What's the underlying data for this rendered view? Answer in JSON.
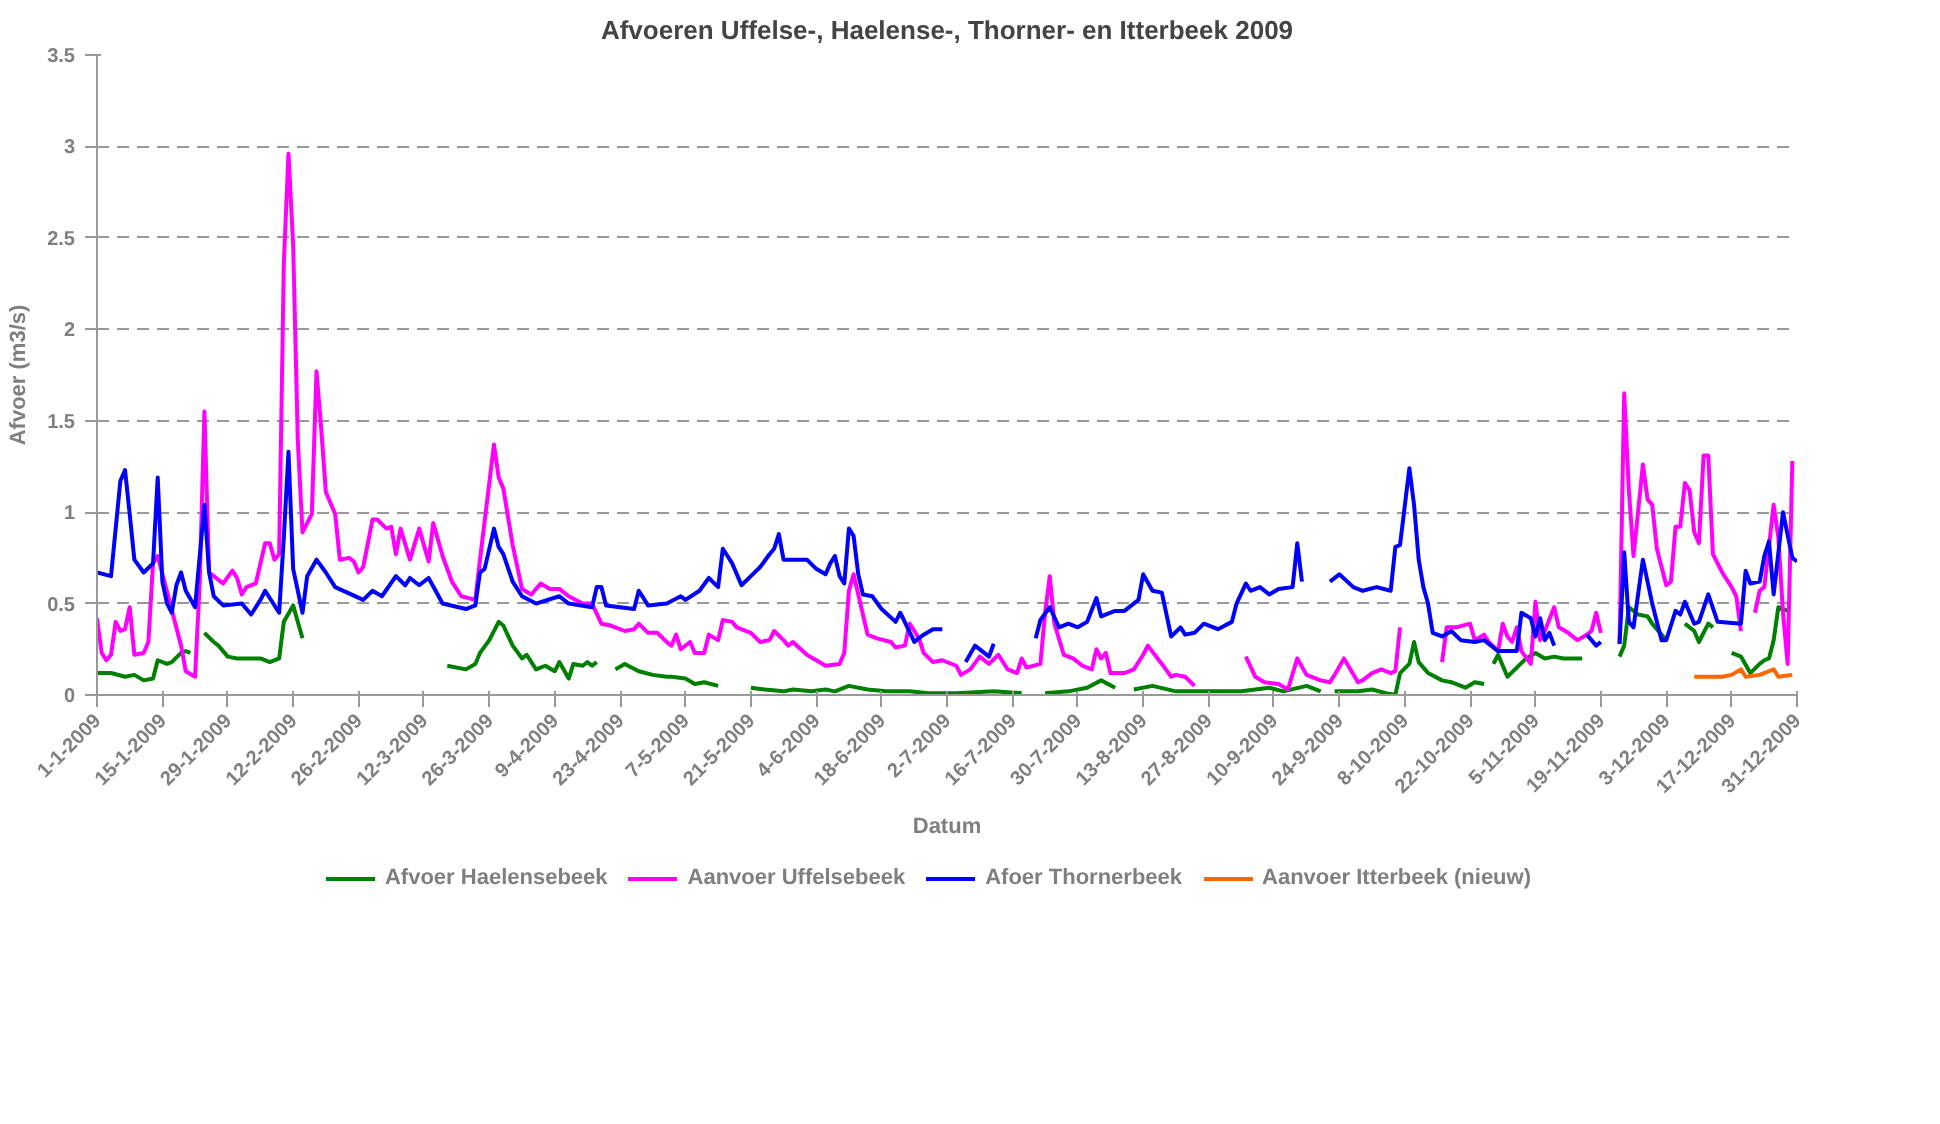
{
  "chart_data": {
    "type": "line",
    "title": "Afvoeren Uffelse-, Haelense-, Thorner- en Itterbeek 2009",
    "xlabel": "Datum",
    "ylabel": "Afvoer (m3/s)",
    "grid": "y",
    "legend": "bottom",
    "line_style": "solid",
    "xlim": [
      "2009-01-01",
      "2009-12-31"
    ],
    "ylim": [
      0,
      3.5
    ],
    "yticks": [
      0,
      0.5,
      1,
      1.5,
      2,
      2.5,
      3,
      3.5
    ],
    "xticks": [
      {
        "value": "2009-01-01",
        "label": "1-1-2009"
      },
      {
        "value": "2009-01-15",
        "label": "15-1-2009"
      },
      {
        "value": "2009-01-29",
        "label": "29-1-2009"
      },
      {
        "value": "2009-02-12",
        "label": "12-2-2009"
      },
      {
        "value": "2009-02-26",
        "label": "26-2-2009"
      },
      {
        "value": "2009-03-12",
        "label": "12-3-2009"
      },
      {
        "value": "2009-03-26",
        "label": "26-3-2009"
      },
      {
        "value": "2009-04-09",
        "label": "9-4-2009"
      },
      {
        "value": "2009-04-23",
        "label": "23-4-2009"
      },
      {
        "value": "2009-05-07",
        "label": "7-5-2009"
      },
      {
        "value": "2009-05-21",
        "label": "21-5-2009"
      },
      {
        "value": "2009-06-04",
        "label": "4-6-2009"
      },
      {
        "value": "2009-06-18",
        "label": "18-6-2009"
      },
      {
        "value": "2009-07-02",
        "label": "2-7-2009"
      },
      {
        "value": "2009-07-16",
        "label": "16-7-2009"
      },
      {
        "value": "2009-07-30",
        "label": "30-7-2009"
      },
      {
        "value": "2009-08-13",
        "label": "13-8-2009"
      },
      {
        "value": "2009-08-27",
        "label": "27-8-2009"
      },
      {
        "value": "2009-09-10",
        "label": "10-9-2009"
      },
      {
        "value": "2009-09-24",
        "label": "24-9-2009"
      },
      {
        "value": "2009-10-08",
        "label": "8-10-2009"
      },
      {
        "value": "2009-10-22",
        "label": "22-10-2009"
      },
      {
        "value": "2009-11-05",
        "label": "5-11-2009"
      },
      {
        "value": "2009-11-19",
        "label": "19-11-2009"
      },
      {
        "value": "2009-12-03",
        "label": "3-12-2009"
      },
      {
        "value": "2009-12-17",
        "label": "17-12-2009"
      },
      {
        "value": "2009-12-31",
        "label": "31-12-2009"
      }
    ],
    "series": [
      {
        "name": "Afvoer Haelensebeek",
        "color": "#008000",
        "x": [
          "2009-01-01",
          "2009-01-04",
          "2009-01-07",
          "2009-01-09",
          "2009-01-11",
          "2009-01-13",
          "2009-01-14",
          "2009-01-16",
          "2009-01-17",
          "2009-01-19",
          "2009-01-20",
          "2009-01-21",
          "2009-01-22",
          "2009-01-24",
          "2009-01-26",
          "2009-01-27",
          "2009-01-29",
          "2009-01-31",
          "2009-02-02",
          "2009-02-05",
          "2009-02-07",
          "2009-02-09",
          "2009-02-10",
          "2009-02-12",
          "2009-02-13",
          "2009-02-14",
          "2009-02-16",
          "2009-03-17",
          "2009-03-21",
          "2009-03-23",
          "2009-03-24",
          "2009-03-26",
          "2009-03-28",
          "2009-03-29",
          "2009-03-31",
          "2009-04-02",
          "2009-04-03",
          "2009-04-05",
          "2009-04-07",
          "2009-04-09",
          "2009-04-10",
          "2009-04-12",
          "2009-04-13",
          "2009-04-15",
          "2009-04-16",
          "2009-04-17",
          "2009-04-18",
          "2009-04-20",
          "2009-04-22",
          "2009-04-24",
          "2009-04-27",
          "2009-04-30",
          "2009-05-03",
          "2009-05-04",
          "2009-05-07",
          "2009-05-09",
          "2009-05-11",
          "2009-05-14",
          "2009-05-16",
          "2009-05-21",
          "2009-05-24",
          "2009-05-28",
          "2009-05-30",
          "2009-06-03",
          "2009-06-06",
          "2009-06-08",
          "2009-06-11",
          "2009-06-15",
          "2009-06-19",
          "2009-06-24",
          "2009-06-28",
          "2009-07-04",
          "2009-07-12",
          "2009-07-18",
          "2009-07-20",
          "2009-07-23",
          "2009-07-28",
          "2009-08-01",
          "2009-08-04",
          "2009-08-07",
          "2009-08-09",
          "2009-08-11",
          "2009-08-15",
          "2009-08-20",
          "2009-08-24",
          "2009-08-28",
          "2009-09-03",
          "2009-09-09",
          "2009-09-12",
          "2009-09-17",
          "2009-09-20",
          "2009-09-21",
          "2009-09-23",
          "2009-09-28",
          "2009-10-01",
          "2009-10-04",
          "2009-10-06",
          "2009-10-07",
          "2009-10-09",
          "2009-10-10",
          "2009-10-11",
          "2009-10-13",
          "2009-10-16",
          "2009-10-18",
          "2009-10-21",
          "2009-10-23",
          "2009-10-25",
          "2009-10-26",
          "2009-10-27",
          "2009-10-28",
          "2009-10-30",
          "2009-11-01",
          "2009-11-03",
          "2009-11-05",
          "2009-11-07",
          "2009-11-09",
          "2009-11-11",
          "2009-11-15",
          "2009-11-20",
          "2009-11-23",
          "2009-11-24",
          "2009-11-25",
          "2009-11-27",
          "2009-11-29",
          "2009-11-30",
          "2009-12-03",
          "2009-12-05",
          "2009-12-07",
          "2009-12-09",
          "2009-12-10",
          "2009-12-12",
          "2009-12-13",
          "2009-12-15",
          "2009-12-17",
          "2009-12-19",
          "2009-12-21",
          "2009-12-23",
          "2009-12-24",
          "2009-12-25",
          "2009-12-26",
          "2009-12-27",
          "2009-12-29"
        ],
        "values": [
          0.12,
          0.12,
          0.1,
          0.11,
          0.08,
          0.09,
          0.19,
          0.17,
          0.18,
          0.23,
          0.24,
          0.23,
          null,
          0.34,
          0.29,
          0.27,
          0.21,
          0.2,
          0.2,
          0.2,
          0.18,
          0.2,
          0.4,
          0.49,
          0.4,
          0.31,
          null,
          0.16,
          0.14,
          0.17,
          0.23,
          0.3,
          0.4,
          0.38,
          0.27,
          0.2,
          0.22,
          0.14,
          0.16,
          0.13,
          0.18,
          0.09,
          0.17,
          0.16,
          0.18,
          0.16,
          0.18,
          null,
          0.14,
          0.17,
          0.13,
          0.11,
          0.1,
          0.1,
          0.09,
          0.06,
          0.07,
          0.05,
          null,
          0.04,
          0.03,
          0.02,
          0.03,
          0.02,
          0.03,
          0.02,
          0.05,
          0.03,
          0.02,
          0.02,
          0.01,
          0.01,
          0.02,
          0.01,
          null,
          0.01,
          0.02,
          0.04,
          0.08,
          0.04,
          null,
          0.03,
          0.05,
          0.02,
          0.02,
          0.02,
          0.02,
          0.04,
          0.02,
          0.05,
          0.02,
          null,
          0.02,
          0.02,
          0.03,
          0.01,
          0.0,
          0.12,
          0.17,
          0.29,
          0.18,
          0.12,
          0.08,
          0.07,
          0.04,
          0.07,
          0.06,
          null,
          0.17,
          0.22,
          0.1,
          0.15,
          0.2,
          0.23,
          0.2,
          0.21,
          0.2,
          0.2,
          null,
          0.21,
          0.27,
          0.48,
          0.44,
          0.43,
          0.39,
          0.3,
          null,
          0.39,
          0.35,
          0.29,
          0.39,
          0.37,
          null,
          0.23,
          0.21,
          0.12,
          0.17,
          0.19,
          0.2,
          0.3,
          0.48,
          0.46
        ]
      },
      {
        "name": "Aanvoer Uffelsebeek",
        "color": "#ff00ff",
        "x": [
          "2009-01-01",
          "2009-01-02",
          "2009-01-03",
          "2009-01-04",
          "2009-01-05",
          "2009-01-06",
          "2009-01-07",
          "2009-01-08",
          "2009-01-09",
          "2009-01-11",
          "2009-01-12",
          "2009-01-13",
          "2009-01-14",
          "2009-01-19",
          "2009-01-20",
          "2009-01-22",
          "2009-01-23",
          "2009-01-24",
          "2009-01-25",
          "2009-01-26",
          "2009-01-28",
          "2009-01-30",
          "2009-01-31",
          "2009-02-01",
          "2009-02-02",
          "2009-02-04",
          "2009-02-06",
          "2009-02-07",
          "2009-02-08",
          "2009-02-09",
          "2009-02-10",
          "2009-02-11",
          "2009-02-12",
          "2009-02-13",
          "2009-02-14",
          "2009-02-16",
          "2009-02-17",
          "2009-02-18",
          "2009-02-19",
          "2009-02-21",
          "2009-02-22",
          "2009-02-24",
          "2009-02-25",
          "2009-02-26",
          "2009-02-27",
          "2009-03-01",
          "2009-03-02",
          "2009-03-04",
          "2009-03-05",
          "2009-03-06",
          "2009-03-07",
          "2009-03-09",
          "2009-03-11",
          "2009-03-13",
          "2009-03-14",
          "2009-03-16",
          "2009-03-18",
          "2009-03-20",
          "2009-03-23",
          "2009-03-24",
          "2009-03-27",
          "2009-03-28",
          "2009-03-29",
          "2009-03-31",
          "2009-04-02",
          "2009-04-04",
          "2009-04-06",
          "2009-04-08",
          "2009-04-10",
          "2009-04-12",
          "2009-04-15",
          "2009-04-17",
          "2009-04-19",
          "2009-04-21",
          "2009-04-24",
          "2009-04-26",
          "2009-04-27",
          "2009-04-29",
          "2009-05-01",
          "2009-05-03",
          "2009-05-04",
          "2009-05-05",
          "2009-05-06",
          "2009-05-08",
          "2009-05-09",
          "2009-05-11",
          "2009-05-12",
          "2009-05-14",
          "2009-05-15",
          "2009-05-17",
          "2009-05-18",
          "2009-05-21",
          "2009-05-23",
          "2009-05-25",
          "2009-05-26",
          "2009-05-28",
          "2009-05-29",
          "2009-05-30",
          "2009-06-02",
          "2009-06-04",
          "2009-06-06",
          "2009-06-09",
          "2009-06-10",
          "2009-06-11",
          "2009-06-12",
          "2009-06-14",
          "2009-06-15",
          "2009-06-17",
          "2009-06-20",
          "2009-06-21",
          "2009-06-23",
          "2009-06-24",
          "2009-06-26",
          "2009-06-27",
          "2009-06-29",
          "2009-07-01",
          "2009-07-04",
          "2009-07-05",
          "2009-07-07",
          "2009-07-09",
          "2009-07-11",
          "2009-07-13",
          "2009-07-15",
          "2009-07-17",
          "2009-07-18",
          "2009-07-19",
          "2009-07-22",
          "2009-07-23",
          "2009-07-24",
          "2009-07-25",
          "2009-07-27",
          "2009-07-29",
          "2009-07-31",
          "2009-08-02",
          "2009-08-03",
          "2009-08-04",
          "2009-08-05",
          "2009-08-06",
          "2009-08-09",
          "2009-08-11",
          "2009-08-13",
          "2009-08-14",
          "2009-08-17",
          "2009-08-19",
          "2009-08-20",
          "2009-08-22",
          "2009-08-24",
          "2009-08-30",
          "2009-09-04",
          "2009-09-06",
          "2009-09-08",
          "2009-09-11",
          "2009-09-13",
          "2009-09-15",
          "2009-09-17",
          "2009-09-20",
          "2009-09-22",
          "2009-09-23",
          "2009-09-25",
          "2009-09-28",
          "2009-09-29",
          "2009-10-01",
          "2009-10-03",
          "2009-10-05",
          "2009-10-06",
          "2009-10-07",
          "2009-10-10",
          "2009-10-16",
          "2009-10-17",
          "2009-10-19",
          "2009-10-22",
          "2009-10-23",
          "2009-10-25",
          "2009-10-26",
          "2009-10-28",
          "2009-10-29",
          "2009-10-30",
          "2009-10-31",
          "2009-11-01",
          "2009-11-02",
          "2009-11-04",
          "2009-11-05",
          "2009-11-06",
          "2009-11-07",
          "2009-11-09",
          "2009-11-10",
          "2009-11-12",
          "2009-11-14",
          "2009-11-16",
          "2009-11-17",
          "2009-11-18",
          "2009-11-19",
          "2009-11-21",
          "2009-11-23",
          "2009-11-24",
          "2009-11-25",
          "2009-11-26",
          "2009-11-28",
          "2009-11-29",
          "2009-11-30",
          "2009-12-01",
          "2009-12-03",
          "2009-12-04",
          "2009-12-05",
          "2009-12-06",
          "2009-12-07",
          "2009-12-08",
          "2009-12-09",
          "2009-12-10",
          "2009-12-11",
          "2009-12-12",
          "2009-12-13",
          "2009-12-15",
          "2009-12-17",
          "2009-12-18",
          "2009-12-19",
          "2009-12-20",
          "2009-12-22",
          "2009-12-23",
          "2009-12-24",
          "2009-12-26",
          "2009-12-27",
          "2009-12-28",
          "2009-12-29",
          "2009-12-30"
        ],
        "values": [
          0.42,
          0.23,
          0.19,
          0.22,
          0.4,
          0.35,
          0.36,
          0.48,
          0.22,
          0.23,
          0.29,
          0.72,
          0.76,
          0.27,
          0.13,
          0.1,
          0.62,
          1.55,
          0.67,
          0.65,
          0.61,
          0.68,
          0.64,
          0.55,
          0.59,
          0.61,
          0.83,
          0.83,
          0.74,
          0.77,
          2.36,
          2.96,
          2.46,
          1.39,
          0.89,
          0.99,
          1.77,
          1.46,
          1.11,
          0.99,
          0.74,
          0.75,
          0.73,
          0.67,
          0.7,
          0.96,
          0.96,
          0.91,
          0.92,
          0.77,
          0.91,
          0.74,
          0.91,
          0.73,
          0.94,
          0.76,
          0.62,
          0.54,
          0.52,
          0.74,
          1.37,
          1.19,
          1.13,
          0.82,
          0.58,
          0.55,
          0.61,
          0.58,
          0.58,
          0.54,
          0.5,
          0.5,
          0.39,
          0.38,
          0.35,
          0.36,
          0.39,
          0.34,
          0.34,
          0.29,
          0.27,
          0.33,
          0.25,
          0.29,
          0.23,
          0.23,
          0.33,
          0.3,
          0.41,
          0.4,
          0.37,
          0.34,
          0.29,
          0.3,
          0.35,
          0.3,
          0.27,
          0.29,
          0.22,
          0.19,
          0.16,
          0.17,
          0.23,
          0.57,
          0.66,
          0.44,
          0.33,
          0.31,
          0.29,
          0.26,
          0.27,
          0.39,
          0.31,
          0.23,
          0.18,
          0.19,
          0.16,
          0.11,
          0.14,
          0.21,
          0.17,
          0.22,
          0.14,
          0.12,
          0.2,
          0.15,
          0.17,
          0.45,
          0.65,
          0.39,
          0.22,
          0.2,
          0.16,
          0.14,
          0.25,
          0.2,
          0.23,
          0.12,
          0.12,
          0.14,
          0.22,
          0.27,
          0.17,
          0.1,
          0.11,
          0.1,
          0.05,
          null,
          0.21,
          0.1,
          0.07,
          0.06,
          0.03,
          0.2,
          0.11,
          0.08,
          0.07,
          0.11,
          0.2,
          0.07,
          0.08,
          0.12,
          0.14,
          0.12,
          0.13,
          0.37,
          null,
          0.18,
          0.37,
          0.37,
          0.39,
          0.3,
          0.33,
          0.29,
          0.24,
          0.39,
          0.32,
          0.29,
          0.37,
          0.24,
          0.17,
          0.51,
          0.3,
          0.35,
          0.48,
          0.37,
          0.34,
          0.3,
          0.33,
          0.35,
          0.45,
          0.34,
          null,
          0.28,
          1.65,
          1.12,
          0.76,
          1.26,
          1.07,
          1.04,
          0.8,
          0.6,
          0.62,
          0.92,
          0.92,
          1.16,
          1.12,
          0.89,
          0.83,
          1.31,
          1.31,
          0.77,
          0.67,
          0.59,
          0.54,
          0.35,
          null,
          0.45,
          0.57,
          0.59,
          1.04,
          0.86,
          0.45,
          0.17,
          1.28
        ]
      },
      {
        "name": "Afoer Thornerbeek",
        "color": "#0000ff",
        "x": [
          "2009-01-01",
          "2009-01-04",
          "2009-01-06",
          "2009-01-07",
          "2009-01-08",
          "2009-01-09",
          "2009-01-11",
          "2009-01-13",
          "2009-01-14",
          "2009-01-15",
          "2009-01-16",
          "2009-01-17",
          "2009-01-18",
          "2009-01-19",
          "2009-01-20",
          "2009-01-22",
          "2009-01-24",
          "2009-01-25",
          "2009-01-26",
          "2009-01-28",
          "2009-02-01",
          "2009-02-03",
          "2009-02-05",
          "2009-02-06",
          "2009-02-09",
          "2009-02-10",
          "2009-02-11",
          "2009-02-12",
          "2009-02-14",
          "2009-02-15",
          "2009-02-17",
          "2009-02-19",
          "2009-02-21",
          "2009-02-27",
          "2009-03-01",
          "2009-03-03",
          "2009-03-06",
          "2009-03-08",
          "2009-03-09",
          "2009-03-11",
          "2009-03-13",
          "2009-03-16",
          "2009-03-21",
          "2009-03-23",
          "2009-03-24",
          "2009-03-25",
          "2009-03-27",
          "2009-03-28",
          "2009-03-29",
          "2009-03-31",
          "2009-04-02",
          "2009-04-05",
          "2009-04-10",
          "2009-04-12",
          "2009-04-17",
          "2009-04-18",
          "2009-04-19",
          "2009-04-20",
          "2009-04-26",
          "2009-04-27",
          "2009-04-29",
          "2009-05-03",
          "2009-05-06",
          "2009-05-07",
          "2009-05-10",
          "2009-05-12",
          "2009-05-14",
          "2009-05-15",
          "2009-05-16",
          "2009-05-17",
          "2009-05-19",
          "2009-05-21",
          "2009-05-23",
          "2009-05-25",
          "2009-05-26",
          "2009-05-27",
          "2009-05-28",
          "2009-06-02",
          "2009-06-04",
          "2009-06-06",
          "2009-06-07",
          "2009-06-08",
          "2009-06-09",
          "2009-06-10",
          "2009-06-11",
          "2009-06-12",
          "2009-06-13",
          "2009-06-14",
          "2009-06-16",
          "2009-06-18",
          "2009-06-21",
          "2009-06-22",
          "2009-06-25",
          "2009-06-27",
          "2009-06-29",
          "2009-07-01",
          "2009-07-03",
          "2009-07-06",
          "2009-07-08",
          "2009-07-11",
          "2009-07-12",
          "2009-07-15",
          "2009-07-21",
          "2009-07-22",
          "2009-07-24",
          "2009-07-26",
          "2009-07-28",
          "2009-07-30",
          "2009-08-01",
          "2009-08-03",
          "2009-08-04",
          "2009-08-07",
          "2009-08-09",
          "2009-08-12",
          "2009-08-13",
          "2009-08-15",
          "2009-08-17",
          "2009-08-19",
          "2009-08-21",
          "2009-08-22",
          "2009-08-24",
          "2009-08-26",
          "2009-08-29",
          "2009-09-01",
          "2009-09-02",
          "2009-09-04",
          "2009-09-05",
          "2009-09-07",
          "2009-09-09",
          "2009-09-11",
          "2009-09-14",
          "2009-09-15",
          "2009-09-16",
          "2009-09-18",
          "2009-09-22",
          "2009-09-24",
          "2009-09-27",
          "2009-09-29",
          "2009-10-02",
          "2009-10-05",
          "2009-10-06",
          "2009-10-07",
          "2009-10-09",
          "2009-10-10",
          "2009-10-11",
          "2009-10-12",
          "2009-10-13",
          "2009-10-14",
          "2009-10-16",
          "2009-10-18",
          "2009-10-20",
          "2009-10-23",
          "2009-10-25",
          "2009-10-28",
          "2009-11-01",
          "2009-11-02",
          "2009-11-04",
          "2009-11-05",
          "2009-11-06",
          "2009-11-07",
          "2009-11-08",
          "2009-11-09",
          "2009-11-12",
          "2009-11-16",
          "2009-11-18",
          "2009-11-19",
          "2009-11-21",
          "2009-11-23",
          "2009-11-24",
          "2009-11-25",
          "2009-11-26",
          "2009-11-28",
          "2009-11-30",
          "2009-12-02",
          "2009-12-03",
          "2009-12-05",
          "2009-12-06",
          "2009-12-07",
          "2009-12-09",
          "2009-12-10",
          "2009-12-12",
          "2009-12-14",
          "2009-12-19",
          "2009-12-20",
          "2009-12-21",
          "2009-12-23",
          "2009-12-24",
          "2009-12-25",
          "2009-12-26",
          "2009-12-28",
          "2009-12-30",
          "2009-12-31"
        ],
        "values": [
          0.67,
          0.65,
          1.17,
          1.23,
          0.99,
          0.74,
          0.67,
          0.72,
          1.19,
          0.62,
          0.5,
          0.45,
          0.6,
          0.67,
          0.57,
          0.48,
          1.04,
          0.67,
          0.54,
          0.49,
          0.5,
          0.44,
          0.52,
          0.57,
          0.45,
          0.86,
          1.33,
          0.69,
          0.45,
          0.65,
          0.74,
          0.67,
          0.59,
          0.52,
          0.57,
          0.54,
          0.65,
          0.6,
          0.64,
          0.6,
          0.64,
          0.5,
          0.47,
          0.49,
          0.67,
          0.69,
          0.91,
          0.81,
          0.77,
          0.62,
          0.54,
          0.5,
          0.54,
          0.5,
          0.48,
          0.59,
          0.59,
          0.49,
          0.47,
          0.57,
          0.49,
          0.5,
          0.54,
          0.52,
          0.57,
          0.64,
          0.59,
          0.8,
          0.76,
          0.72,
          0.6,
          0.65,
          0.7,
          0.77,
          0.8,
          0.88,
          0.74,
          0.74,
          0.69,
          0.66,
          0.72,
          0.76,
          0.65,
          0.61,
          0.91,
          0.87,
          0.66,
          0.55,
          0.54,
          0.47,
          0.4,
          0.45,
          0.29,
          0.33,
          0.36,
          0.36,
          null,
          0.18,
          0.27,
          0.21,
          0.28,
          null,
          0.31,
          0.41,
          0.48,
          0.37,
          0.39,
          0.37,
          0.4,
          0.53,
          0.43,
          0.46,
          0.46,
          0.52,
          0.66,
          0.57,
          0.56,
          0.32,
          0.37,
          0.33,
          0.34,
          0.39,
          0.36,
          0.4,
          0.5,
          0.61,
          0.57,
          0.59,
          0.55,
          0.58,
          0.59,
          0.83,
          0.62,
          null,
          0.62,
          0.66,
          0.59,
          0.57,
          0.59,
          0.57,
          0.81,
          0.82,
          1.24,
          1.04,
          0.74,
          0.59,
          0.5,
          0.34,
          0.32,
          0.35,
          0.3,
          0.29,
          0.3,
          0.24,
          0.24,
          0.45,
          0.42,
          0.32,
          0.42,
          0.3,
          0.34,
          0.27,
          null,
          0.33,
          0.27,
          0.29,
          null,
          0.28,
          0.78,
          0.4,
          0.37,
          0.74,
          0.5,
          0.3,
          0.3,
          0.46,
          0.44,
          0.51,
          0.39,
          0.4,
          0.55,
          0.4,
          0.39,
          0.68,
          0.61,
          0.62,
          0.76,
          0.84,
          0.55,
          1.0,
          0.75,
          0.73
        ]
      },
      {
        "name": "Aanvoer Itterbeek (nieuw)",
        "color": "#ff6600",
        "x": [
          "2009-12-09",
          "2009-12-12",
          "2009-12-15",
          "2009-12-17",
          "2009-12-19",
          "2009-12-20",
          "2009-12-23",
          "2009-12-26",
          "2009-12-27",
          "2009-12-30"
        ],
        "values": [
          0.1,
          0.1,
          0.1,
          0.11,
          0.14,
          0.1,
          0.11,
          0.14,
          0.1,
          0.11
        ]
      }
    ]
  }
}
